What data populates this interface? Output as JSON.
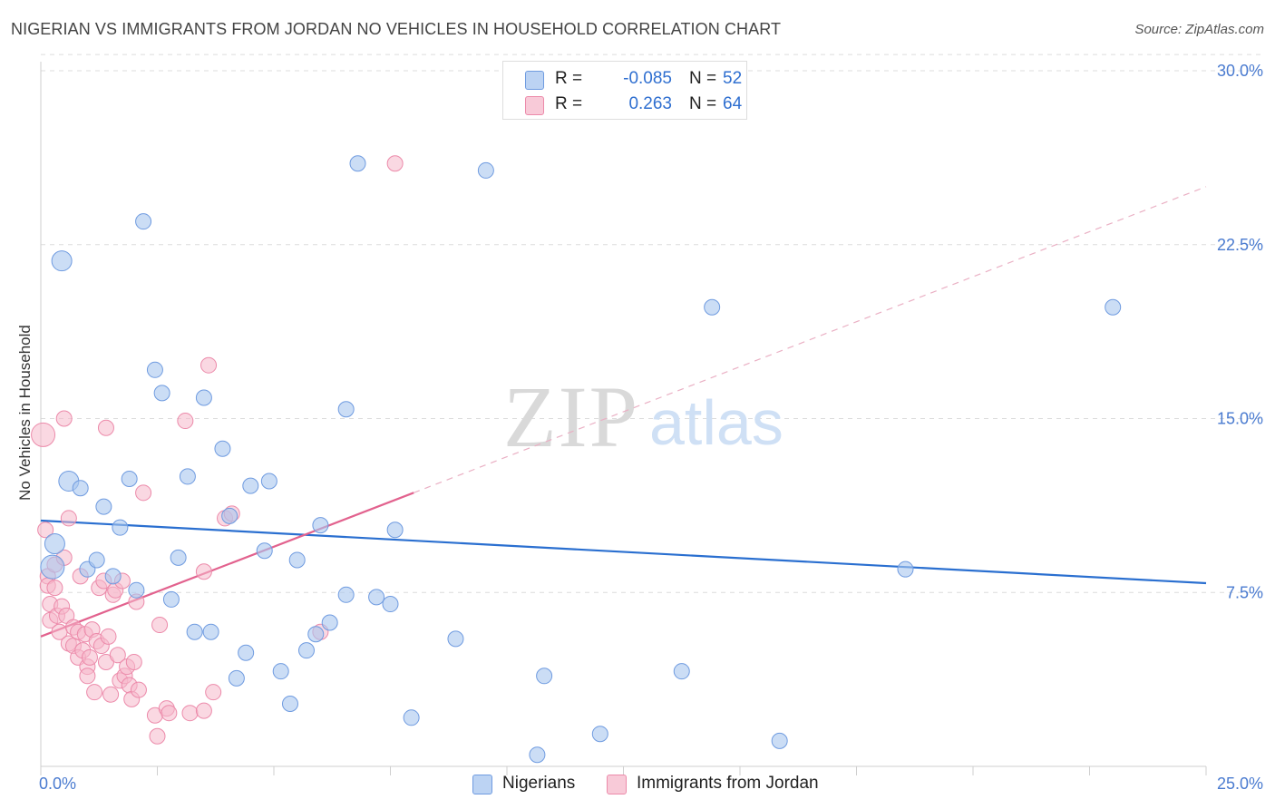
{
  "header": {
    "title": "NIGERIAN VS IMMIGRANTS FROM JORDAN NO VEHICLES IN HOUSEHOLD CORRELATION CHART",
    "source": "Source: ZipAtlas.com"
  },
  "watermark": {
    "zip": "ZIP",
    "atlas": "atlas"
  },
  "legend_top": {
    "rows": [
      {
        "r_label": "R =",
        "r_value": "-0.085",
        "n_label": "N =",
        "n_value": "52"
      },
      {
        "r_label": "R =",
        "r_value": "0.263",
        "n_label": "N =",
        "n_value": "64"
      }
    ]
  },
  "legend_bottom": {
    "series1": "Nigerians",
    "series2": "Immigrants from Jordan"
  },
  "colors": {
    "blue_fill": "#a9c6ef",
    "blue_stroke": "#6f9be0",
    "blue_line": "#2a6fd0",
    "pink_fill": "#f5b8cb",
    "pink_stroke": "#ec8aaa",
    "pink_line": "#e2628e",
    "grid": "#dcdcdc",
    "tick_text": "#4a7bd0"
  },
  "chart_data": {
    "type": "scatter",
    "title": "NIGERIAN VS IMMIGRANTS FROM JORDAN NO VEHICLES IN HOUSEHOLD CORRELATION CHART",
    "xlabel": "",
    "ylabel": "No Vehicles in Household",
    "xlim": [
      0,
      25
    ],
    "ylim": [
      0,
      30
    ],
    "x_tick_labels": [
      "0.0%",
      "25.0%"
    ],
    "y_ticks": [
      7.5,
      15.0,
      22.5,
      30.0
    ],
    "y_tick_labels": [
      "7.5%",
      "15.0%",
      "22.5%",
      "30.0%"
    ],
    "series": [
      {
        "name": "Nigerians",
        "r": -0.085,
        "n": 52,
        "trend": {
          "x0": 0,
          "y0": 10.6,
          "x1": 25,
          "y1": 7.9
        },
        "points": [
          {
            "x": 0.25,
            "y": 8.6,
            "s": "l"
          },
          {
            "x": 0.3,
            "y": 9.6,
            "s": "m"
          },
          {
            "x": 0.45,
            "y": 21.8,
            "s": "m"
          },
          {
            "x": 0.6,
            "y": 12.3,
            "s": "m"
          },
          {
            "x": 0.85,
            "y": 12.0
          },
          {
            "x": 1.0,
            "y": 8.5
          },
          {
            "x": 1.2,
            "y": 8.9
          },
          {
            "x": 1.35,
            "y": 11.2
          },
          {
            "x": 1.55,
            "y": 8.2
          },
          {
            "x": 1.7,
            "y": 10.3
          },
          {
            "x": 1.9,
            "y": 12.4
          },
          {
            "x": 2.05,
            "y": 7.6
          },
          {
            "x": 2.2,
            "y": 23.5
          },
          {
            "x": 2.45,
            "y": 17.1
          },
          {
            "x": 2.6,
            "y": 16.1
          },
          {
            "x": 2.8,
            "y": 7.2
          },
          {
            "x": 2.95,
            "y": 9.0
          },
          {
            "x": 3.15,
            "y": 12.5
          },
          {
            "x": 3.3,
            "y": 5.8
          },
          {
            "x": 3.5,
            "y": 15.9
          },
          {
            "x": 3.65,
            "y": 5.8
          },
          {
            "x": 3.9,
            "y": 13.7
          },
          {
            "x": 4.05,
            "y": 10.8
          },
          {
            "x": 4.2,
            "y": 3.8
          },
          {
            "x": 4.4,
            "y": 4.9
          },
          {
            "x": 4.5,
            "y": 12.1
          },
          {
            "x": 4.8,
            "y": 9.3
          },
          {
            "x": 4.9,
            "y": 12.3
          },
          {
            "x": 5.15,
            "y": 4.1
          },
          {
            "x": 5.35,
            "y": 2.7
          },
          {
            "x": 5.5,
            "y": 8.9
          },
          {
            "x": 5.7,
            "y": 5.0
          },
          {
            "x": 5.9,
            "y": 5.7
          },
          {
            "x": 6.0,
            "y": 10.4
          },
          {
            "x": 6.2,
            "y": 6.2
          },
          {
            "x": 6.55,
            "y": 15.4
          },
          {
            "x": 6.55,
            "y": 7.4
          },
          {
            "x": 6.8,
            "y": 26.0
          },
          {
            "x": 7.2,
            "y": 7.3
          },
          {
            "x": 7.5,
            "y": 7.0
          },
          {
            "x": 7.6,
            "y": 10.2
          },
          {
            "x": 7.95,
            "y": 2.1
          },
          {
            "x": 8.9,
            "y": 5.5
          },
          {
            "x": 9.55,
            "y": 25.7
          },
          {
            "x": 10.65,
            "y": 0.5
          },
          {
            "x": 10.8,
            "y": 3.9
          },
          {
            "x": 12.0,
            "y": 1.4
          },
          {
            "x": 13.75,
            "y": 4.1
          },
          {
            "x": 14.4,
            "y": 19.8
          },
          {
            "x": 15.85,
            "y": 1.1
          },
          {
            "x": 18.55,
            "y": 8.5
          },
          {
            "x": 23.0,
            "y": 19.8
          }
        ]
      },
      {
        "name": "Immigrants from Jordan",
        "r": 0.263,
        "n": 64,
        "trend": {
          "x0": 0,
          "y0": 5.6,
          "x1": 8.0,
          "y1": 11.8
        },
        "trend_dashed": {
          "x0": 8.0,
          "y0": 11.8,
          "x1": 25,
          "y1": 25.0
        },
        "points": [
          {
            "x": 0.05,
            "y": 14.3,
            "s": "l"
          },
          {
            "x": 0.1,
            "y": 10.2
          },
          {
            "x": 0.15,
            "y": 8.2
          },
          {
            "x": 0.15,
            "y": 7.8
          },
          {
            "x": 0.2,
            "y": 7.0
          },
          {
            "x": 0.2,
            "y": 6.3
          },
          {
            "x": 0.3,
            "y": 8.7
          },
          {
            "x": 0.3,
            "y": 7.7
          },
          {
            "x": 0.35,
            "y": 6.5
          },
          {
            "x": 0.4,
            "y": 5.8
          },
          {
            "x": 0.45,
            "y": 6.9
          },
          {
            "x": 0.5,
            "y": 15.0
          },
          {
            "x": 0.5,
            "y": 9.0
          },
          {
            "x": 0.55,
            "y": 6.5
          },
          {
            "x": 0.6,
            "y": 10.7
          },
          {
            "x": 0.6,
            "y": 5.3
          },
          {
            "x": 0.7,
            "y": 5.2
          },
          {
            "x": 0.7,
            "y": 6.0
          },
          {
            "x": 0.8,
            "y": 4.7
          },
          {
            "x": 0.8,
            "y": 5.8
          },
          {
            "x": 0.85,
            "y": 8.2
          },
          {
            "x": 0.9,
            "y": 5.0
          },
          {
            "x": 0.95,
            "y": 5.7
          },
          {
            "x": 1.0,
            "y": 4.3
          },
          {
            "x": 1.0,
            "y": 3.9
          },
          {
            "x": 1.05,
            "y": 4.7
          },
          {
            "x": 1.1,
            "y": 5.9
          },
          {
            "x": 1.15,
            "y": 3.2
          },
          {
            "x": 1.2,
            "y": 5.4
          },
          {
            "x": 1.25,
            "y": 7.7
          },
          {
            "x": 1.3,
            "y": 5.2
          },
          {
            "x": 1.35,
            "y": 8.0
          },
          {
            "x": 1.4,
            "y": 4.5
          },
          {
            "x": 1.4,
            "y": 14.6
          },
          {
            "x": 1.45,
            "y": 5.6
          },
          {
            "x": 1.5,
            "y": 3.1
          },
          {
            "x": 1.55,
            "y": 7.4
          },
          {
            "x": 1.6,
            "y": 7.6
          },
          {
            "x": 1.65,
            "y": 4.8
          },
          {
            "x": 1.7,
            "y": 3.7
          },
          {
            "x": 1.75,
            "y": 8.0
          },
          {
            "x": 1.8,
            "y": 3.9
          },
          {
            "x": 1.85,
            "y": 4.3
          },
          {
            "x": 1.9,
            "y": 3.5
          },
          {
            "x": 1.95,
            "y": 2.9
          },
          {
            "x": 2.0,
            "y": 4.5
          },
          {
            "x": 2.05,
            "y": 7.1
          },
          {
            "x": 2.1,
            "y": 3.3
          },
          {
            "x": 2.2,
            "y": 11.8
          },
          {
            "x": 2.45,
            "y": 2.2
          },
          {
            "x": 2.5,
            "y": 1.3
          },
          {
            "x": 2.55,
            "y": 6.1
          },
          {
            "x": 2.7,
            "y": 2.5
          },
          {
            "x": 2.75,
            "y": 2.3
          },
          {
            "x": 3.1,
            "y": 14.9
          },
          {
            "x": 3.2,
            "y": 2.3
          },
          {
            "x": 3.5,
            "y": 8.4
          },
          {
            "x": 3.5,
            "y": 2.4
          },
          {
            "x": 3.6,
            "y": 17.3
          },
          {
            "x": 3.7,
            "y": 3.2
          },
          {
            "x": 3.95,
            "y": 10.7
          },
          {
            "x": 4.1,
            "y": 10.9
          },
          {
            "x": 6.0,
            "y": 5.8
          },
          {
            "x": 7.6,
            "y": 26.0
          }
        ]
      }
    ]
  }
}
